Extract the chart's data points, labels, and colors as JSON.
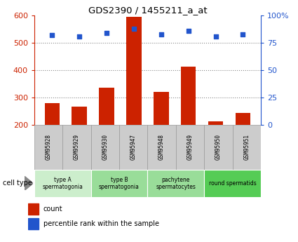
{
  "title": "GDS2390 / 1455211_a_at",
  "samples": [
    "GSM95928",
    "GSM95929",
    "GSM95930",
    "GSM95947",
    "GSM95948",
    "GSM95949",
    "GSM95950",
    "GSM95951"
  ],
  "counts": [
    278,
    265,
    335,
    595,
    320,
    412,
    213,
    242
  ],
  "percentile_ranks": [
    82,
    81,
    84,
    88,
    83,
    86,
    81,
    83
  ],
  "ylim_left": [
    200,
    600
  ],
  "ylim_right": [
    0,
    100
  ],
  "yticks_left": [
    200,
    300,
    400,
    500,
    600
  ],
  "yticks_right": [
    0,
    25,
    50,
    75,
    100
  ],
  "bar_color": "#cc2200",
  "dot_color": "#2255cc",
  "bar_bottom": 200,
  "cell_type_groups": [
    {
      "label": "type A\nspermatogonia",
      "start": 0,
      "end": 2,
      "color": "#cceecc"
    },
    {
      "label": "type B\nspermatogonia",
      "start": 2,
      "end": 4,
      "color": "#99dd99"
    },
    {
      "label": "pachytene\nspermatocytes",
      "start": 4,
      "end": 6,
      "color": "#99dd99"
    },
    {
      "label": "round spermatids",
      "start": 6,
      "end": 8,
      "color": "#55cc55"
    }
  ],
  "left_axis_color": "#cc2200",
  "right_axis_color": "#2255cc",
  "sample_box_color": "#cccccc",
  "sample_box_edge": "#999999",
  "bg_color": "#ffffff"
}
